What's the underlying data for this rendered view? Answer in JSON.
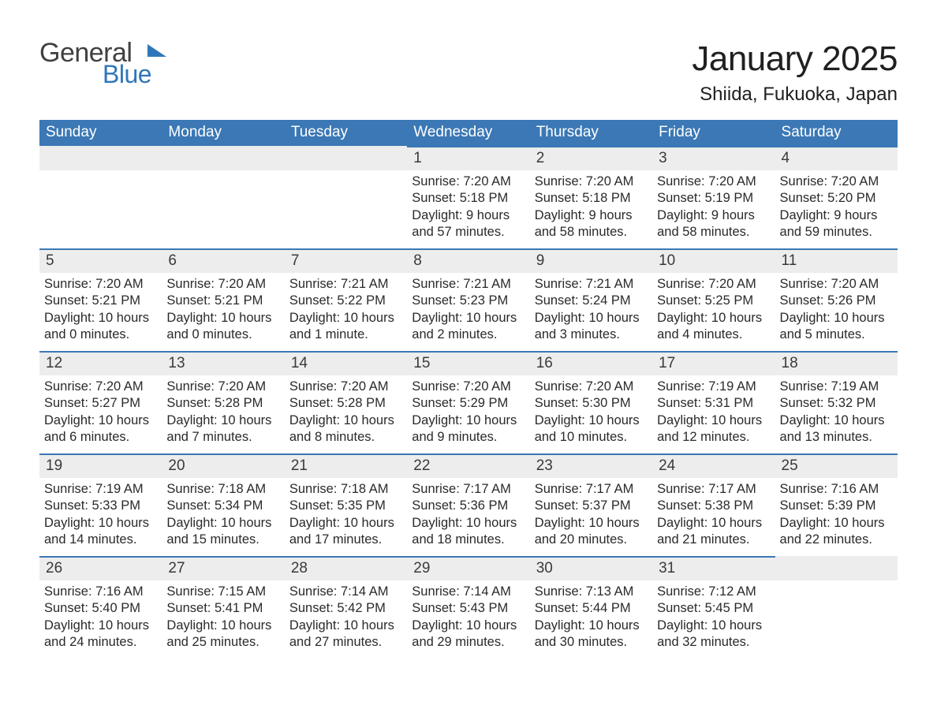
{
  "logo": {
    "word1": "General",
    "word2": "Blue",
    "flag_color": "#2f77b8",
    "text_color_1": "#404040",
    "text_color_2": "#2f77b8"
  },
  "title": "January 2025",
  "location": "Shiida, Fukuoka, Japan",
  "colors": {
    "header_bg": "#3b78b5",
    "header_text": "#ffffff",
    "daynum_bg": "#ededed",
    "daynum_border": "#3b78b5",
    "body_text": "#2a2a2a",
    "background": "#ffffff"
  },
  "fonts": {
    "title_size_pt": 33,
    "location_size_pt": 18,
    "weekday_size_pt": 14,
    "body_size_pt": 12
  },
  "weekdays": [
    "Sunday",
    "Monday",
    "Tuesday",
    "Wednesday",
    "Thursday",
    "Friday",
    "Saturday"
  ],
  "weeks": [
    [
      null,
      null,
      null,
      {
        "n": "1",
        "sunrise": "Sunrise: 7:20 AM",
        "sunset": "Sunset: 5:18 PM",
        "daylight": "Daylight: 9 hours and 57 minutes."
      },
      {
        "n": "2",
        "sunrise": "Sunrise: 7:20 AM",
        "sunset": "Sunset: 5:18 PM",
        "daylight": "Daylight: 9 hours and 58 minutes."
      },
      {
        "n": "3",
        "sunrise": "Sunrise: 7:20 AM",
        "sunset": "Sunset: 5:19 PM",
        "daylight": "Daylight: 9 hours and 58 minutes."
      },
      {
        "n": "4",
        "sunrise": "Sunrise: 7:20 AM",
        "sunset": "Sunset: 5:20 PM",
        "daylight": "Daylight: 9 hours and 59 minutes."
      }
    ],
    [
      {
        "n": "5",
        "sunrise": "Sunrise: 7:20 AM",
        "sunset": "Sunset: 5:21 PM",
        "daylight": "Daylight: 10 hours and 0 minutes."
      },
      {
        "n": "6",
        "sunrise": "Sunrise: 7:20 AM",
        "sunset": "Sunset: 5:21 PM",
        "daylight": "Daylight: 10 hours and 0 minutes."
      },
      {
        "n": "7",
        "sunrise": "Sunrise: 7:21 AM",
        "sunset": "Sunset: 5:22 PM",
        "daylight": "Daylight: 10 hours and 1 minute."
      },
      {
        "n": "8",
        "sunrise": "Sunrise: 7:21 AM",
        "sunset": "Sunset: 5:23 PM",
        "daylight": "Daylight: 10 hours and 2 minutes."
      },
      {
        "n": "9",
        "sunrise": "Sunrise: 7:21 AM",
        "sunset": "Sunset: 5:24 PM",
        "daylight": "Daylight: 10 hours and 3 minutes."
      },
      {
        "n": "10",
        "sunrise": "Sunrise: 7:20 AM",
        "sunset": "Sunset: 5:25 PM",
        "daylight": "Daylight: 10 hours and 4 minutes."
      },
      {
        "n": "11",
        "sunrise": "Sunrise: 7:20 AM",
        "sunset": "Sunset: 5:26 PM",
        "daylight": "Daylight: 10 hours and 5 minutes."
      }
    ],
    [
      {
        "n": "12",
        "sunrise": "Sunrise: 7:20 AM",
        "sunset": "Sunset: 5:27 PM",
        "daylight": "Daylight: 10 hours and 6 minutes."
      },
      {
        "n": "13",
        "sunrise": "Sunrise: 7:20 AM",
        "sunset": "Sunset: 5:28 PM",
        "daylight": "Daylight: 10 hours and 7 minutes."
      },
      {
        "n": "14",
        "sunrise": "Sunrise: 7:20 AM",
        "sunset": "Sunset: 5:28 PM",
        "daylight": "Daylight: 10 hours and 8 minutes."
      },
      {
        "n": "15",
        "sunrise": "Sunrise: 7:20 AM",
        "sunset": "Sunset: 5:29 PM",
        "daylight": "Daylight: 10 hours and 9 minutes."
      },
      {
        "n": "16",
        "sunrise": "Sunrise: 7:20 AM",
        "sunset": "Sunset: 5:30 PM",
        "daylight": "Daylight: 10 hours and 10 minutes."
      },
      {
        "n": "17",
        "sunrise": "Sunrise: 7:19 AM",
        "sunset": "Sunset: 5:31 PM",
        "daylight": "Daylight: 10 hours and 12 minutes."
      },
      {
        "n": "18",
        "sunrise": "Sunrise: 7:19 AM",
        "sunset": "Sunset: 5:32 PM",
        "daylight": "Daylight: 10 hours and 13 minutes."
      }
    ],
    [
      {
        "n": "19",
        "sunrise": "Sunrise: 7:19 AM",
        "sunset": "Sunset: 5:33 PM",
        "daylight": "Daylight: 10 hours and 14 minutes."
      },
      {
        "n": "20",
        "sunrise": "Sunrise: 7:18 AM",
        "sunset": "Sunset: 5:34 PM",
        "daylight": "Daylight: 10 hours and 15 minutes."
      },
      {
        "n": "21",
        "sunrise": "Sunrise: 7:18 AM",
        "sunset": "Sunset: 5:35 PM",
        "daylight": "Daylight: 10 hours and 17 minutes."
      },
      {
        "n": "22",
        "sunrise": "Sunrise: 7:17 AM",
        "sunset": "Sunset: 5:36 PM",
        "daylight": "Daylight: 10 hours and 18 minutes."
      },
      {
        "n": "23",
        "sunrise": "Sunrise: 7:17 AM",
        "sunset": "Sunset: 5:37 PM",
        "daylight": "Daylight: 10 hours and 20 minutes."
      },
      {
        "n": "24",
        "sunrise": "Sunrise: 7:17 AM",
        "sunset": "Sunset: 5:38 PM",
        "daylight": "Daylight: 10 hours and 21 minutes."
      },
      {
        "n": "25",
        "sunrise": "Sunrise: 7:16 AM",
        "sunset": "Sunset: 5:39 PM",
        "daylight": "Daylight: 10 hours and 22 minutes."
      }
    ],
    [
      {
        "n": "26",
        "sunrise": "Sunrise: 7:16 AM",
        "sunset": "Sunset: 5:40 PM",
        "daylight": "Daylight: 10 hours and 24 minutes."
      },
      {
        "n": "27",
        "sunrise": "Sunrise: 7:15 AM",
        "sunset": "Sunset: 5:41 PM",
        "daylight": "Daylight: 10 hours and 25 minutes."
      },
      {
        "n": "28",
        "sunrise": "Sunrise: 7:14 AM",
        "sunset": "Sunset: 5:42 PM",
        "daylight": "Daylight: 10 hours and 27 minutes."
      },
      {
        "n": "29",
        "sunrise": "Sunrise: 7:14 AM",
        "sunset": "Sunset: 5:43 PM",
        "daylight": "Daylight: 10 hours and 29 minutes."
      },
      {
        "n": "30",
        "sunrise": "Sunrise: 7:13 AM",
        "sunset": "Sunset: 5:44 PM",
        "daylight": "Daylight: 10 hours and 30 minutes."
      },
      {
        "n": "31",
        "sunrise": "Sunrise: 7:12 AM",
        "sunset": "Sunset: 5:45 PM",
        "daylight": "Daylight: 10 hours and 32 minutes."
      },
      null
    ]
  ]
}
